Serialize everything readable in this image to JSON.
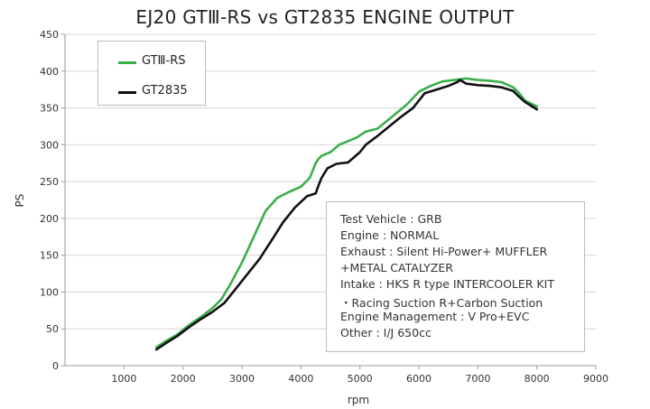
{
  "chart_data": {
    "type": "line",
    "title": "EJ20 GTⅢ-RS vs GT2835 ENGINE OUTPUT",
    "xlabel": "rpm",
    "ylabel": "PS",
    "xlim": [
      0,
      9000
    ],
    "ylim": [
      0,
      450
    ],
    "xticks": [
      1000,
      2000,
      3000,
      4000,
      5000,
      6000,
      7000,
      8000,
      9000
    ],
    "yticks": [
      0,
      50,
      100,
      150,
      200,
      250,
      300,
      350,
      400,
      450
    ],
    "grid": "horizontal",
    "legend_position": "top-left",
    "series": [
      {
        "name": "GTⅢ-RS",
        "color": "#3cae4b",
        "x": [
          1550,
          1700,
          1900,
          2100,
          2300,
          2500,
          2650,
          2800,
          3000,
          3200,
          3400,
          3600,
          3800,
          4000,
          4150,
          4250,
          4300,
          4350,
          4500,
          4650,
          4800,
          4950,
          5100,
          5300,
          5500,
          5800,
          6000,
          6200,
          6400,
          6600,
          6800,
          7000,
          7200,
          7400,
          7600,
          7700,
          7800,
          8000
        ],
        "y": [
          25,
          33,
          42,
          55,
          66,
          78,
          90,
          110,
          140,
          175,
          210,
          228,
          236,
          243,
          255,
          275,
          281,
          285,
          290,
          300,
          305,
          310,
          318,
          322,
          335,
          355,
          372,
          380,
          386,
          388,
          390,
          388,
          387,
          385,
          378,
          370,
          360,
          352
        ]
      },
      {
        "name": "GT2835",
        "color": "#111111",
        "x": [
          1550,
          1700,
          1900,
          2100,
          2300,
          2500,
          2700,
          2900,
          3100,
          3300,
          3500,
          3700,
          3900,
          4100,
          4250,
          4300,
          4350,
          4450,
          4600,
          4800,
          5000,
          5100,
          5300,
          5500,
          5700,
          5900,
          6100,
          6300,
          6500,
          6650,
          6700,
          6800,
          7000,
          7200,
          7400,
          7600,
          7700,
          7800,
          8000
        ],
        "y": [
          22,
          30,
          40,
          52,
          63,
          73,
          85,
          105,
          125,
          145,
          170,
          195,
          215,
          230,
          234,
          245,
          255,
          268,
          274,
          276,
          290,
          300,
          312,
          325,
          338,
          350,
          370,
          375,
          380,
          385,
          388,
          383,
          381,
          380,
          378,
          373,
          365,
          358,
          348
        ]
      }
    ]
  },
  "info_box": {
    "lines": [
      "Test Vehicle : GRB",
      "Engine : NORMAL",
      "Exhaust : Silent Hi-Power+ MUFFLER",
      "+METAL CATALYZER",
      "Intake : HKS R type INTERCOOLER KIT",
      "・Racing Suction R+Carbon Suction",
      "Engine Management : V Pro+EVC",
      "Other : I/J 650cc"
    ]
  }
}
